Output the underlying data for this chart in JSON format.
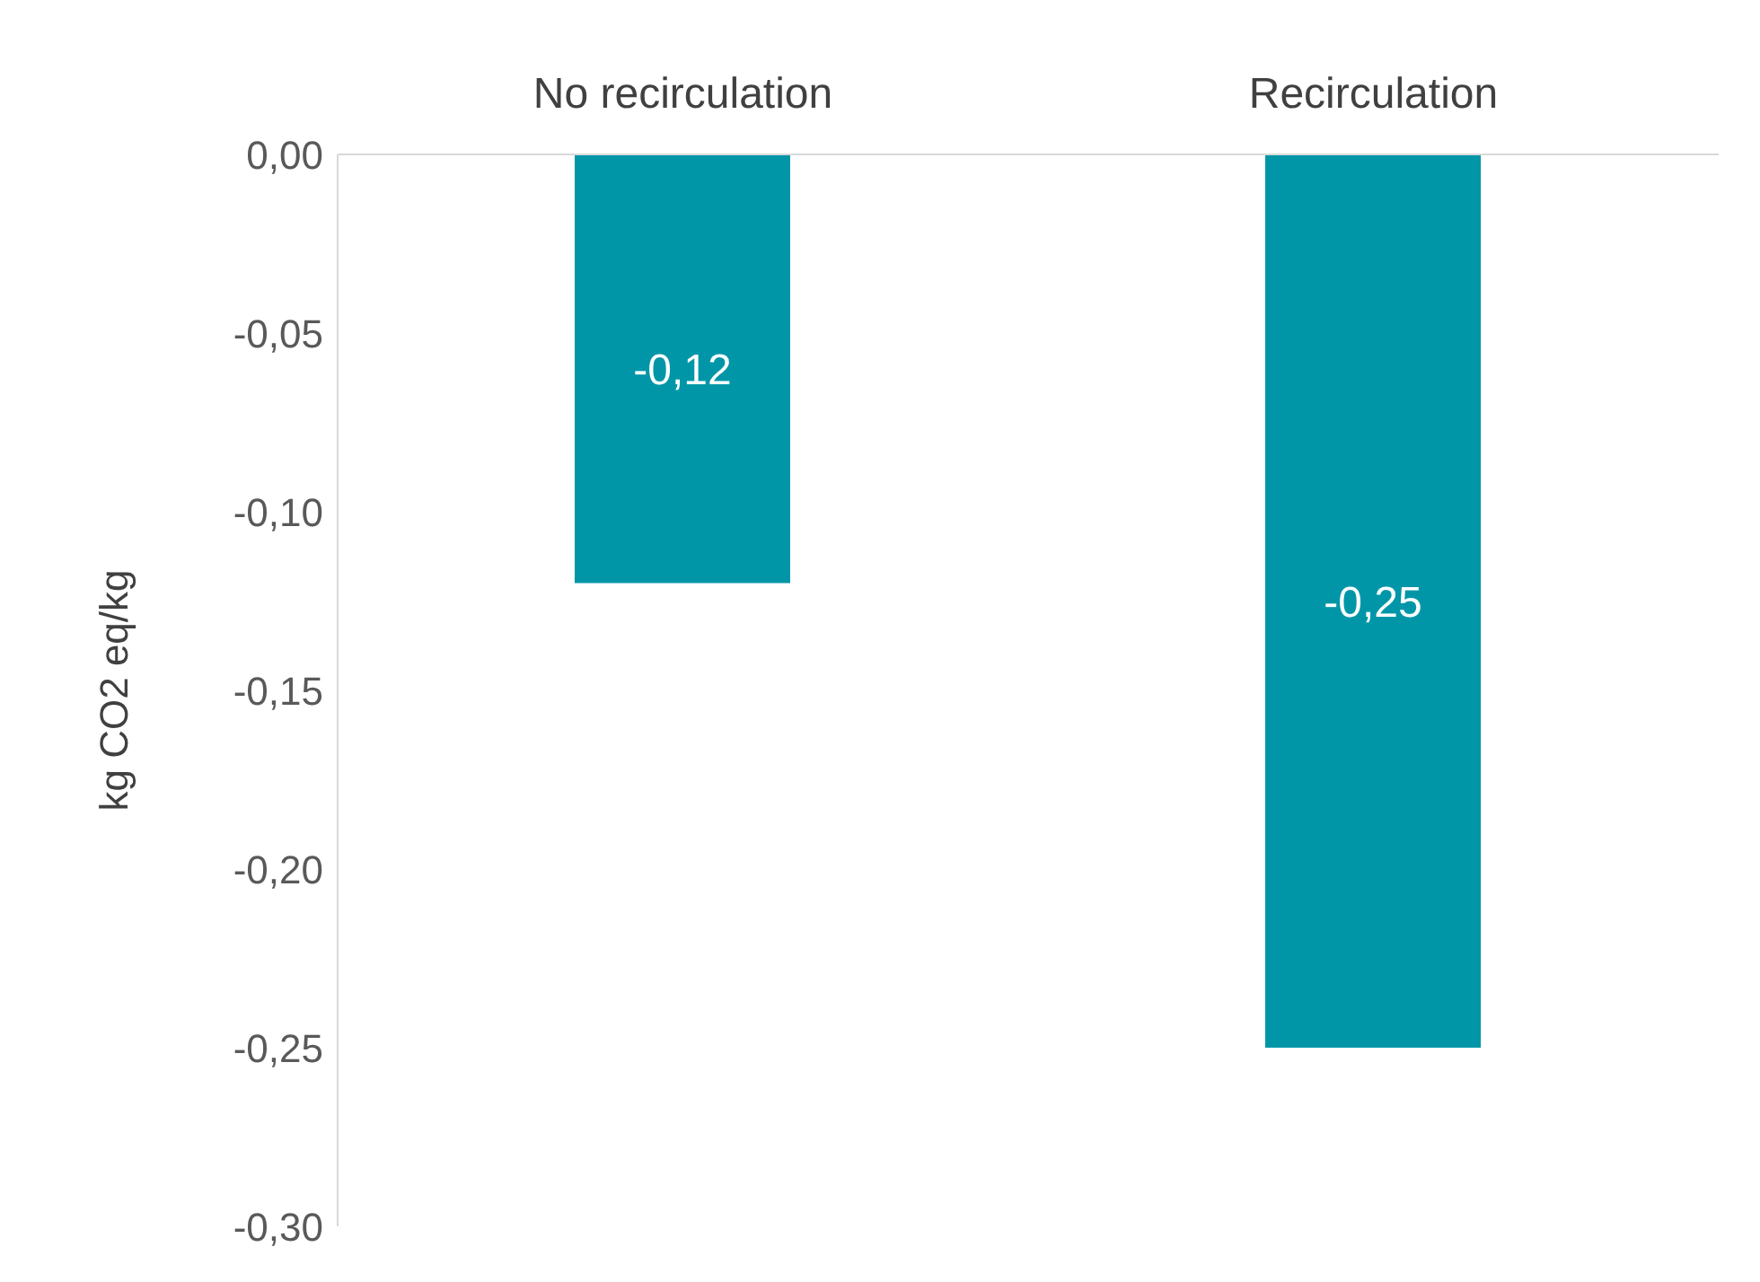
{
  "chart_data": {
    "type": "bar",
    "ylabel": "kg CO2 eq/kg",
    "categories": [
      "No recirculation",
      "Recirculation"
    ],
    "values": [
      -0.12,
      -0.25
    ],
    "value_labels": [
      "-0,12",
      "-0,25"
    ],
    "color": "#0096a8",
    "ylim": [
      -0.3,
      0
    ],
    "yticks": [
      {
        "value": 0,
        "label": "0,00"
      },
      {
        "value": -0.05,
        "label": "-0,05"
      },
      {
        "value": -0.1,
        "label": "-0,10"
      },
      {
        "value": -0.15,
        "label": "-0,15"
      },
      {
        "value": -0.2,
        "label": "-0,20"
      },
      {
        "value": -0.25,
        "label": "-0,25"
      },
      {
        "value": -0.3,
        "label": "-0,30"
      }
    ],
    "grid": false
  }
}
